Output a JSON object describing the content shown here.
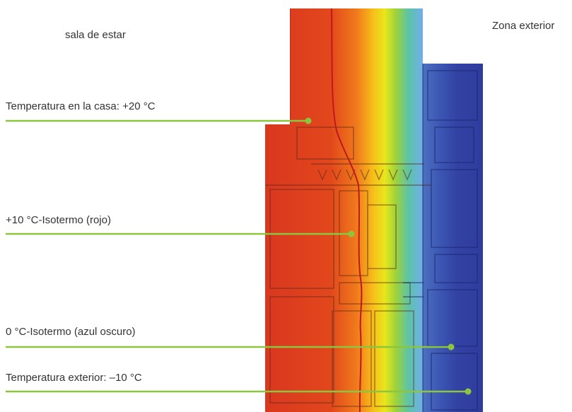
{
  "zones": {
    "inside_label": "sala de estar",
    "outside_label": "Zona exterior"
  },
  "callouts": {
    "house_temp": "Temperatura en la casa: +20 °C",
    "isotherm_10": "+10 °C-Isotermo (rojo)",
    "isotherm_0": "0 °C-Isotermo (azul oscuro)",
    "outside_temp": "Temperatura exterior: –10 °C"
  },
  "colors": {
    "callout_line": "#8cc63f",
    "warm": "#d8331f",
    "mid": "#f5e600",
    "cold": "#2c3f9e",
    "isotherm_line": "#c0181c"
  }
}
